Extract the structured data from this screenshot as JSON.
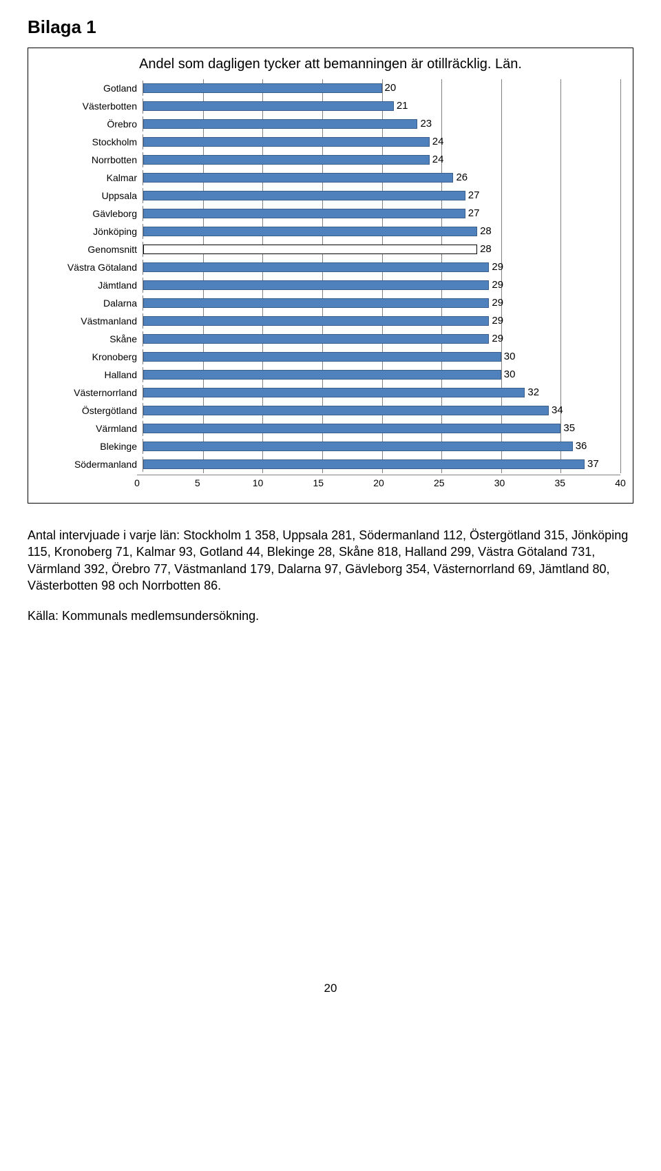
{
  "page_title": "Bilaga 1",
  "chart": {
    "type": "bar-horizontal",
    "title": "Andel som dagligen tycker att bemanningen är otillräcklig. Län.",
    "title_fontsize": 20,
    "label_fontsize": 14,
    "value_fontsize": 15,
    "xlim": [
      0,
      40
    ],
    "xtick_step": 5,
    "background_color": "#ffffff",
    "grid_color": "#808080",
    "bar_fill": "#4f81bd",
    "bar_border": "#3a5e8b",
    "genomsnitt_fill": "#ffffff",
    "genomsnitt_border": "#000000",
    "rows": [
      {
        "label": "Gotland",
        "value": 20,
        "style": "normal"
      },
      {
        "label": "Västerbotten",
        "value": 21,
        "style": "normal"
      },
      {
        "label": "Örebro",
        "value": 23,
        "style": "normal"
      },
      {
        "label": "Stockholm",
        "value": 24,
        "style": "normal"
      },
      {
        "label": "Norrbotten",
        "value": 24,
        "style": "normal"
      },
      {
        "label": "Kalmar",
        "value": 26,
        "style": "normal"
      },
      {
        "label": "Uppsala",
        "value": 27,
        "style": "normal"
      },
      {
        "label": "Gävleborg",
        "value": 27,
        "style": "normal"
      },
      {
        "label": "Jönköping",
        "value": 28,
        "style": "normal"
      },
      {
        "label": "Genomsnitt",
        "value": 28,
        "style": "outline"
      },
      {
        "label": "Västra Götaland",
        "value": 29,
        "style": "normal"
      },
      {
        "label": "Jämtland",
        "value": 29,
        "style": "normal"
      },
      {
        "label": "Dalarna",
        "value": 29,
        "style": "normal"
      },
      {
        "label": "Västmanland",
        "value": 29,
        "style": "normal"
      },
      {
        "label": "Skåne",
        "value": 29,
        "style": "normal"
      },
      {
        "label": "Kronoberg",
        "value": 30,
        "style": "normal"
      },
      {
        "label": "Halland",
        "value": 30,
        "style": "normal"
      },
      {
        "label": "Västernorrland",
        "value": 32,
        "style": "normal"
      },
      {
        "label": "Östergötland",
        "value": 34,
        "style": "normal"
      },
      {
        "label": "Värmland",
        "value": 35,
        "style": "normal"
      },
      {
        "label": "Blekinge",
        "value": 36,
        "style": "normal"
      },
      {
        "label": "Södermanland",
        "value": 37,
        "style": "normal"
      }
    ]
  },
  "body_text": "Antal intervjuade i varje län: Stockholm 1 358, Uppsala 281, Södermanland 112, Östergötland 315, Jönköping 115, Kronoberg 71, Kalmar 93, Gotland 44, Blekinge 28, Skåne 818, Halland 299, Västra Götaland 731, Värmland 392, Örebro 77, Västmanland 179, Dalarna 97, Gävleborg 354, Västernorrland 69, Jämtland 80, Västerbotten 98 och Norrbotten 86.",
  "source_text": "Källa: Kommunals medlemsundersökning.",
  "page_number": "20"
}
